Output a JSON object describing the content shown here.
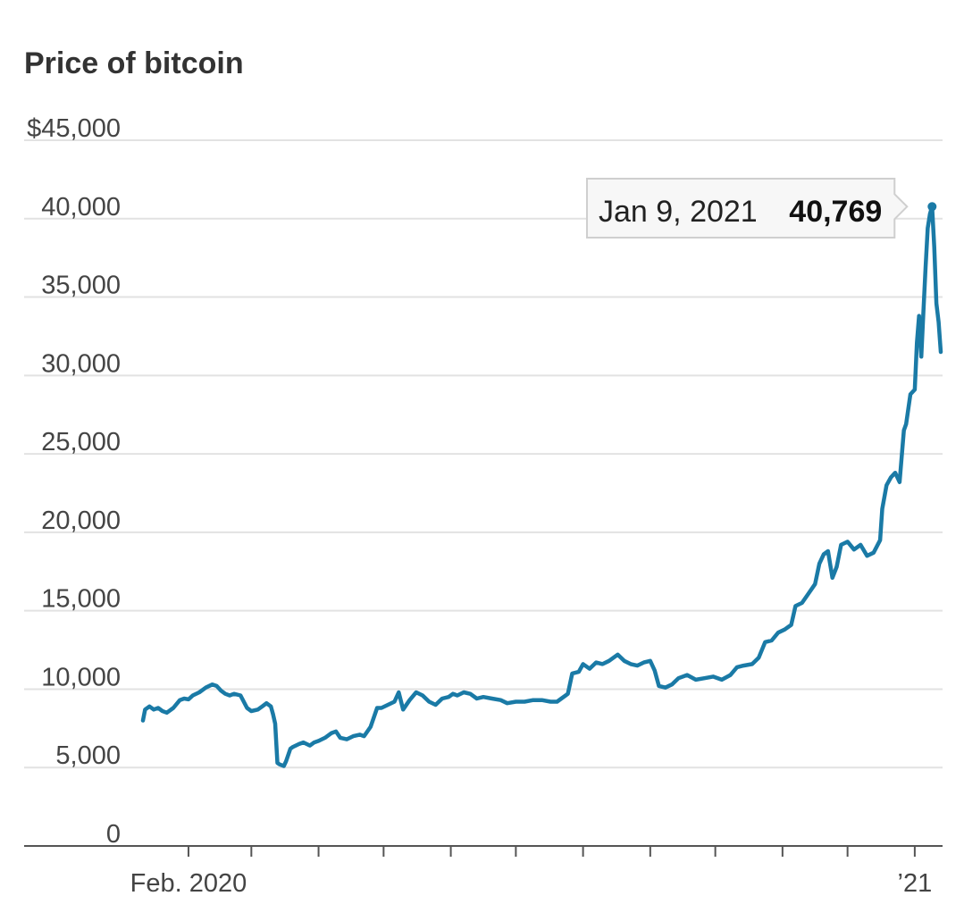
{
  "chart_data": {
    "type": "line",
    "title": "Price of bitcoin",
    "xlabel": "",
    "ylabel": "",
    "ylim": [
      0,
      45000
    ],
    "y_ticks": [
      0,
      5000,
      10000,
      15000,
      20000,
      25000,
      30000,
      35000,
      40000,
      45000
    ],
    "y_tick_labels": [
      "0",
      "5,000",
      "10,000",
      "15,000",
      "20,000",
      "25,000",
      "30,000",
      "35,000",
      "40,000",
      "$45,000"
    ],
    "x_range": [
      "2020-01-11",
      "2021-01-13"
    ],
    "x_ticks": [
      "2020-02-01",
      "2020-03-01",
      "2020-04-01",
      "2020-05-01",
      "2020-06-01",
      "2020-07-01",
      "2020-08-01",
      "2020-09-01",
      "2020-10-01",
      "2020-11-01",
      "2020-12-01",
      "2021-01-01"
    ],
    "x_tick_labels": [
      {
        "date": "2020-02-01",
        "label": "Feb. 2020"
      },
      {
        "date": "2021-01-01",
        "label": "’21"
      }
    ],
    "grid": true,
    "legend": "none",
    "series_color": "#1a7aa6",
    "series": [
      {
        "x": [
          "2020-01-11",
          "2020-01-12",
          "2020-01-14",
          "2020-01-16",
          "2020-01-18",
          "2020-01-20",
          "2020-01-22",
          "2020-01-25",
          "2020-01-28",
          "2020-01-30",
          "2020-02-01",
          "2020-02-03",
          "2020-02-06",
          "2020-02-09",
          "2020-02-12",
          "2020-02-14",
          "2020-02-16",
          "2020-02-18",
          "2020-02-20",
          "2020-02-22",
          "2020-02-25",
          "2020-02-28",
          "2020-03-01",
          "2020-03-04",
          "2020-03-06",
          "2020-03-08",
          "2020-03-10",
          "2020-03-11",
          "2020-03-12",
          "2020-03-13",
          "2020-03-14",
          "2020-03-16",
          "2020-03-17",
          "2020-03-19",
          "2020-03-20",
          "2020-03-23",
          "2020-03-25",
          "2020-03-28",
          "2020-03-30",
          "2020-04-01",
          "2020-04-04",
          "2020-04-07",
          "2020-04-09",
          "2020-04-11",
          "2020-04-14",
          "2020-04-17",
          "2020-04-20",
          "2020-04-22",
          "2020-04-25",
          "2020-04-28",
          "2020-04-30",
          "2020-05-03",
          "2020-05-06",
          "2020-05-08",
          "2020-05-10",
          "2020-05-13",
          "2020-05-16",
          "2020-05-19",
          "2020-05-22",
          "2020-05-25",
          "2020-05-28",
          "2020-05-31",
          "2020-06-02",
          "2020-06-04",
          "2020-06-07",
          "2020-06-10",
          "2020-06-13",
          "2020-06-16",
          "2020-06-20",
          "2020-06-24",
          "2020-06-27",
          "2020-07-01",
          "2020-07-05",
          "2020-07-09",
          "2020-07-13",
          "2020-07-17",
          "2020-07-20",
          "2020-07-22",
          "2020-07-25",
          "2020-07-27",
          "2020-07-30",
          "2020-08-01",
          "2020-08-04",
          "2020-08-07",
          "2020-08-10",
          "2020-08-13",
          "2020-08-17",
          "2020-08-20",
          "2020-08-23",
          "2020-08-26",
          "2020-08-29",
          "2020-09-01",
          "2020-09-03",
          "2020-09-05",
          "2020-09-08",
          "2020-09-11",
          "2020-09-14",
          "2020-09-18",
          "2020-09-22",
          "2020-09-26",
          "2020-09-30",
          "2020-10-04",
          "2020-10-08",
          "2020-10-11",
          "2020-10-14",
          "2020-10-18",
          "2020-10-21",
          "2020-10-24",
          "2020-10-27",
          "2020-10-30",
          "2020-11-02",
          "2020-11-05",
          "2020-11-07",
          "2020-11-10",
          "2020-11-13",
          "2020-11-16",
          "2020-11-18",
          "2020-11-20",
          "2020-11-22",
          "2020-11-24",
          "2020-11-26",
          "2020-11-28",
          "2020-12-01",
          "2020-12-04",
          "2020-12-07",
          "2020-12-10",
          "2020-12-13",
          "2020-12-16",
          "2020-12-17",
          "2020-12-19",
          "2020-12-21",
          "2020-12-23",
          "2020-12-25",
          "2020-12-27",
          "2020-12-28",
          "2020-12-30",
          "2021-01-01",
          "2021-01-02",
          "2021-01-03",
          "2021-01-04",
          "2021-01-05",
          "2021-01-06",
          "2021-01-07",
          "2021-01-08",
          "2021-01-09",
          "2021-01-10",
          "2021-01-11",
          "2021-01-12",
          "2021-01-13"
        ],
        "values": [
          8000,
          8700,
          8900,
          8700,
          8800,
          8600,
          8500,
          8800,
          9300,
          9400,
          9350,
          9600,
          9800,
          10100,
          10300,
          10200,
          9900,
          9700,
          9600,
          9700,
          9600,
          8800,
          8600,
          8700,
          8900,
          9100,
          8900,
          8400,
          7800,
          5300,
          5200,
          5100,
          5400,
          6200,
          6300,
          6500,
          6600,
          6400,
          6600,
          6700,
          6900,
          7200,
          7300,
          6900,
          6800,
          7000,
          7100,
          7000,
          7600,
          8800,
          8800,
          9000,
          9200,
          9800,
          8700,
          9300,
          9800,
          9600,
          9200,
          9000,
          9400,
          9500,
          9700,
          9600,
          9800,
          9700,
          9400,
          9500,
          9400,
          9300,
          9100,
          9200,
          9200,
          9300,
          9300,
          9200,
          9200,
          9400,
          9700,
          11000,
          11100,
          11600,
          11300,
          11700,
          11600,
          11800,
          12200,
          11800,
          11600,
          11500,
          11700,
          11800,
          11200,
          10200,
          10100,
          10300,
          10700,
          10900,
          10600,
          10700,
          10800,
          10600,
          10900,
          11400,
          11500,
          11600,
          12000,
          13000,
          13100,
          13600,
          13800,
          14100,
          15300,
          15500,
          16100,
          16700,
          18000,
          18600,
          18800,
          17100,
          17800,
          19200,
          19400,
          18900,
          19200,
          18500,
          18700,
          19500,
          21500,
          23000,
          23500,
          23800,
          23200,
          26500,
          26900,
          28800,
          29100,
          32100,
          33800,
          31200,
          34100,
          36900,
          39400,
          40300,
          40769,
          38200,
          34600,
          33400,
          31500
        ]
      }
    ],
    "annotation": {
      "date_label": "Jan 9, 2021",
      "value_label": "40,769",
      "x": "2021-01-09",
      "y": 40769
    }
  }
}
